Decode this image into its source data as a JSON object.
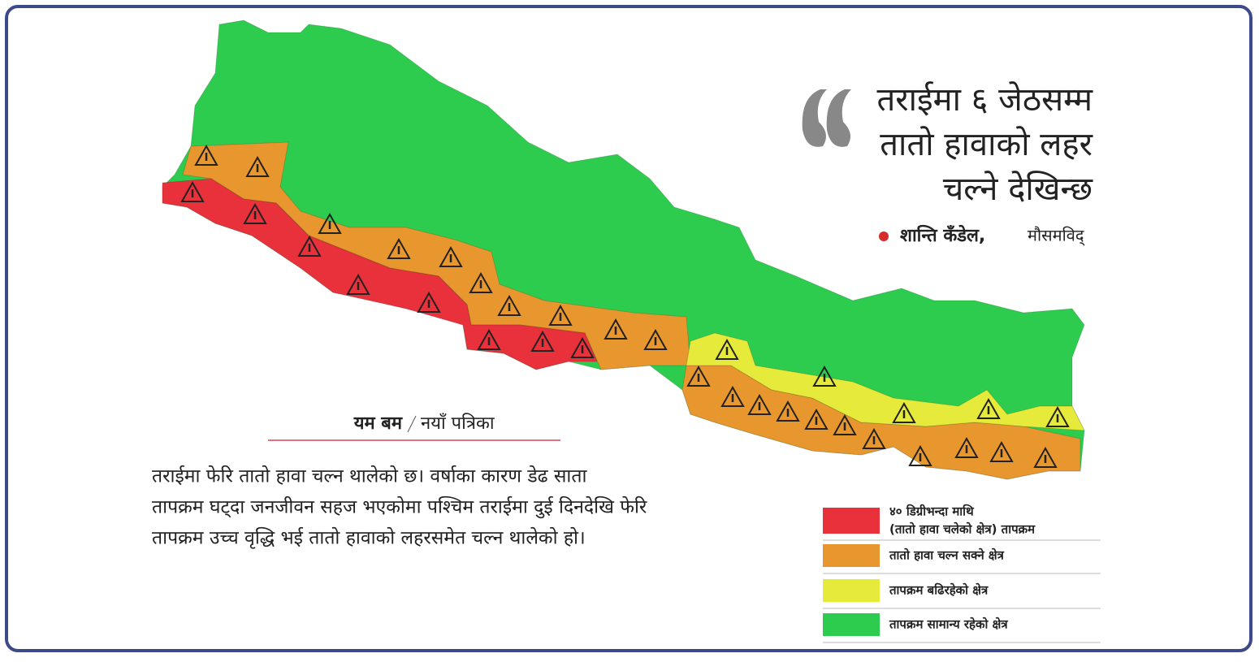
{
  "quote": {
    "lines": [
      "तराईमा ६ जेठसम्म",
      "तातो  हावाको लहर",
      "चल्ने देखिन्छ"
    ]
  },
  "attribution": {
    "name": "शान्ति कँडेल,",
    "role": "मौसमविद्"
  },
  "byline": {
    "author": "यम बम",
    "publication": "नयाँ पत्रिका"
  },
  "body": {
    "lines": [
      "तराईमा फेरि तातो हावा चल्न थालेको छ। वर्षाका कारण डेढ साता",
      "तापक्रम घट्दा जनजीवन सहज भएकोमा पश्चिम तराईमा दुई दिनदेखि फेरि",
      "तापक्रम उच्च वृद्धि भई तातो हावाको लहरसमेत चल्न थालेको हो।"
    ]
  },
  "legend": [
    {
      "lines": [
        "४० डिग्रीभन्दा माथि",
        "(तातो हावा चलेको क्षेत्र) तापक्रम"
      ],
      "color": "#e8313a"
    },
    {
      "lines": [
        "तातो हावा चल्न सक्ने क्षेत्र"
      ],
      "color": "#e8962e"
    },
    {
      "lines": [
        "तापक्रम बढिरहेको क्षेत्र"
      ],
      "color": "#e6ea3a"
    },
    {
      "lines": [
        "तापक्रम सामान्य रहेको क्षेत्र"
      ],
      "color": "#2ecc4e"
    }
  ]
}
